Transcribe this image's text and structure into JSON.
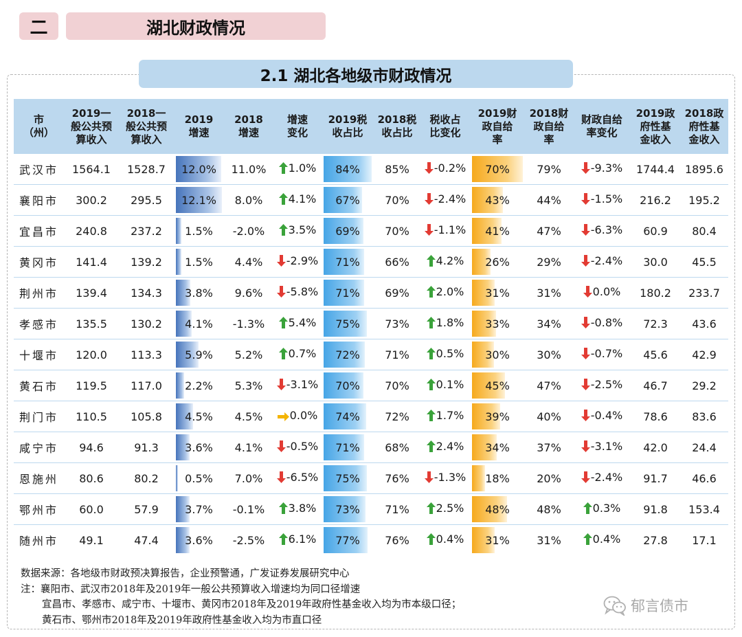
{
  "section": {
    "badge": "二",
    "title": "湖北财政情况"
  },
  "subtitle": "2.1  湖北各地级市财政情况",
  "columns": [
    "市\n（州）",
    "2019一\n般公共预\n算收入",
    "2018一\n般公共预\n算收入",
    "2019\n增速",
    "2018\n增速",
    "增速\n变化",
    "2019税\n收占比",
    "2018税\n收占比",
    "税收占\n比变化",
    "2019财\n政自给\n率",
    "2018财\n政自给\n率",
    "财政自给\n率变化",
    "2019政\n府性基\n金收入",
    "2018政\n府性基\n金收入"
  ],
  "rows": [
    {
      "city": "武汉市",
      "rev2019": "1564.1",
      "rev2018": "1528.7",
      "g2019": "12.0%",
      "g2019_v": 12.0,
      "g2018": "11.0%",
      "gchg": "1.0%",
      "gdir": "up",
      "tax2019": "84%",
      "tax2019_v": 84,
      "tax2018": "85%",
      "tchg": "-0.2%",
      "tdir": "down",
      "self2019": "70%",
      "self2019_v": 70,
      "self2018": "79%",
      "schg": "-9.3%",
      "sdir": "down",
      "fund2019": "1744.4",
      "fund2018": "1895.6"
    },
    {
      "city": "襄阳市",
      "rev2019": "300.2",
      "rev2018": "295.5",
      "g2019": "12.1%",
      "g2019_v": 12.1,
      "g2018": "8.0%",
      "gchg": "4.1%",
      "gdir": "up",
      "tax2019": "67%",
      "tax2019_v": 67,
      "tax2018": "70%",
      "tchg": "-2.4%",
      "tdir": "down",
      "self2019": "43%",
      "self2019_v": 43,
      "self2018": "44%",
      "schg": "-1.5%",
      "sdir": "down",
      "fund2019": "216.2",
      "fund2018": "195.2"
    },
    {
      "city": "宜昌市",
      "rev2019": "240.8",
      "rev2018": "237.2",
      "g2019": "1.5%",
      "g2019_v": 1.5,
      "g2018": "-2.0%",
      "gchg": "3.5%",
      "gdir": "up",
      "tax2019": "69%",
      "tax2019_v": 69,
      "tax2018": "70%",
      "tchg": "-1.1%",
      "tdir": "down",
      "self2019": "41%",
      "self2019_v": 41,
      "self2018": "47%",
      "schg": "-6.3%",
      "sdir": "down",
      "fund2019": "60.9",
      "fund2018": "80.4"
    },
    {
      "city": "黄冈市",
      "rev2019": "141.4",
      "rev2018": "139.2",
      "g2019": "1.5%",
      "g2019_v": 1.5,
      "g2018": "4.4%",
      "gchg": "-2.9%",
      "gdir": "down",
      "tax2019": "71%",
      "tax2019_v": 71,
      "tax2018": "66%",
      "tchg": "4.2%",
      "tdir": "up",
      "self2019": "26%",
      "self2019_v": 26,
      "self2018": "29%",
      "schg": "-2.4%",
      "sdir": "down",
      "fund2019": "30.0",
      "fund2018": "45.5"
    },
    {
      "city": "荆州市",
      "rev2019": "139.4",
      "rev2018": "134.3",
      "g2019": "3.8%",
      "g2019_v": 3.8,
      "g2018": "9.6%",
      "gchg": "-5.8%",
      "gdir": "down",
      "tax2019": "71%",
      "tax2019_v": 71,
      "tax2018": "69%",
      "tchg": "2.0%",
      "tdir": "up",
      "self2019": "31%",
      "self2019_v": 31,
      "self2018": "31%",
      "schg": "0.0%",
      "sdir": "down",
      "fund2019": "180.2",
      "fund2018": "233.7"
    },
    {
      "city": "孝感市",
      "rev2019": "135.5",
      "rev2018": "130.2",
      "g2019": "4.1%",
      "g2019_v": 4.1,
      "g2018": "-1.3%",
      "gchg": "5.4%",
      "gdir": "up",
      "tax2019": "75%",
      "tax2019_v": 75,
      "tax2018": "73%",
      "tchg": "1.8%",
      "tdir": "up",
      "self2019": "33%",
      "self2019_v": 33,
      "self2018": "34%",
      "schg": "-0.8%",
      "sdir": "down",
      "fund2019": "72.3",
      "fund2018": "43.6"
    },
    {
      "city": "十堰市",
      "rev2019": "120.0",
      "rev2018": "113.3",
      "g2019": "5.9%",
      "g2019_v": 5.9,
      "g2018": "5.2%",
      "gchg": "0.7%",
      "gdir": "up",
      "tax2019": "72%",
      "tax2019_v": 72,
      "tax2018": "71%",
      "tchg": "0.5%",
      "tdir": "up",
      "self2019": "30%",
      "self2019_v": 30,
      "self2018": "30%",
      "schg": "-0.7%",
      "sdir": "down",
      "fund2019": "45.6",
      "fund2018": "42.9"
    },
    {
      "city": "黄石市",
      "rev2019": "119.5",
      "rev2018": "117.0",
      "g2019": "2.2%",
      "g2019_v": 2.2,
      "g2018": "5.3%",
      "gchg": "-3.1%",
      "gdir": "down",
      "tax2019": "70%",
      "tax2019_v": 70,
      "tax2018": "70%",
      "tchg": "0.1%",
      "tdir": "up",
      "self2019": "45%",
      "self2019_v": 45,
      "self2018": "47%",
      "schg": "-2.5%",
      "sdir": "down",
      "fund2019": "46.7",
      "fund2018": "29.2"
    },
    {
      "city": "荆门市",
      "rev2019": "110.5",
      "rev2018": "105.8",
      "g2019": "4.5%",
      "g2019_v": 4.5,
      "g2018": "4.5%",
      "gchg": "0.0%",
      "gdir": "flat",
      "tax2019": "74%",
      "tax2019_v": 74,
      "tax2018": "72%",
      "tchg": "1.7%",
      "tdir": "up",
      "self2019": "39%",
      "self2019_v": 39,
      "self2018": "40%",
      "schg": "-0.4%",
      "sdir": "down",
      "fund2019": "78.6",
      "fund2018": "83.6"
    },
    {
      "city": "咸宁市",
      "rev2019": "94.6",
      "rev2018": "91.3",
      "g2019": "3.6%",
      "g2019_v": 3.6,
      "g2018": "4.1%",
      "gchg": "-0.5%",
      "gdir": "down",
      "tax2019": "71%",
      "tax2019_v": 71,
      "tax2018": "68%",
      "tchg": "2.4%",
      "tdir": "up",
      "self2019": "34%",
      "self2019_v": 34,
      "self2018": "37%",
      "schg": "-3.1%",
      "sdir": "down",
      "fund2019": "42.0",
      "fund2018": "24.4"
    },
    {
      "city": "恩施州",
      "rev2019": "80.6",
      "rev2018": "80.2",
      "g2019": "0.5%",
      "g2019_v": 0.5,
      "g2018": "7.0%",
      "gchg": "-6.5%",
      "gdir": "down",
      "tax2019": "75%",
      "tax2019_v": 75,
      "tax2018": "76%",
      "tchg": "-1.3%",
      "tdir": "down",
      "self2019": "18%",
      "self2019_v": 18,
      "self2018": "20%",
      "schg": "-2.4%",
      "sdir": "down",
      "fund2019": "91.7",
      "fund2018": "46.6"
    },
    {
      "city": "鄂州市",
      "rev2019": "60.0",
      "rev2018": "57.9",
      "g2019": "3.7%",
      "g2019_v": 3.7,
      "g2018": "-0.1%",
      "gchg": "3.8%",
      "gdir": "up",
      "tax2019": "73%",
      "tax2019_v": 73,
      "tax2018": "71%",
      "tchg": "2.5%",
      "tdir": "up",
      "self2019": "48%",
      "self2019_v": 48,
      "self2018": "48%",
      "schg": "0.3%",
      "sdir": "up",
      "fund2019": "91.8",
      "fund2018": "153.4"
    },
    {
      "city": "随州市",
      "rev2019": "49.1",
      "rev2018": "47.4",
      "g2019": "3.6%",
      "g2019_v": 3.6,
      "g2018": "-2.5%",
      "gchg": "6.1%",
      "gdir": "up",
      "tax2019": "77%",
      "tax2019_v": 77,
      "tax2018": "76%",
      "tchg": "0.4%",
      "tdir": "up",
      "self2019": "31%",
      "self2019_v": 31,
      "self2018": "31%",
      "schg": "0.4%",
      "sdir": "up",
      "fund2019": "27.8",
      "fund2018": "17.1"
    }
  ],
  "notes": {
    "source": "数据来源：各地级市财政预决算报告，企业预警通，广发证券发展研究中心",
    "line1": "注：襄阳市、武汉市2018年及2019年一般公共预算收入增速均为同口径增速",
    "line2": "宜昌市、孝感市、咸宁市、十堰市、黄冈市2018年及2019年政府性基金收入均为市本级口径；",
    "line3": "黄石市、鄂州市2018年及2019年政府性基金收入均为市直口径"
  },
  "watermark": {
    "text": "郁言债市",
    "icon": "wechat-icon"
  },
  "colors": {
    "header_bg": "#bcd8ee",
    "title_bg": "#f1d1d4",
    "growth_bar": "#4674bb",
    "tax_bar": "#46a5e6",
    "self_bar": "#f6a91c",
    "arrow_up": "#3aa23a",
    "arrow_down": "#e23b33",
    "arrow_flat": "#f4b400"
  }
}
